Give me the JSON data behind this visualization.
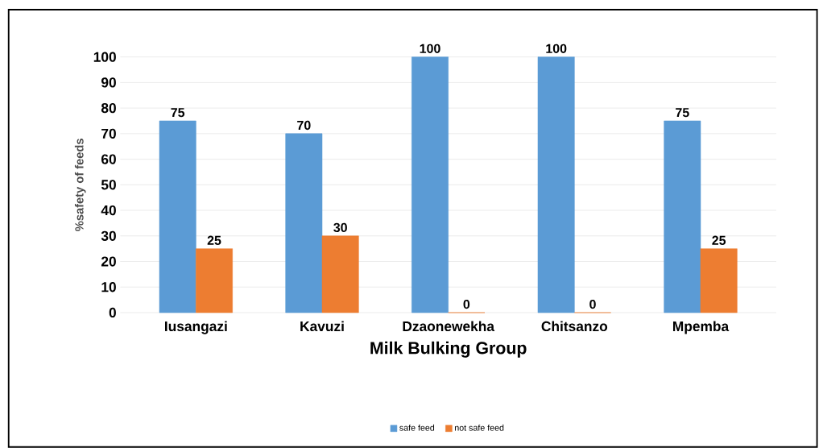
{
  "chart_data": {
    "type": "bar",
    "xlabel": "Milk Bulking Group",
    "ylabel": "%safety of feeds",
    "categories": [
      "Iusangazi",
      "Kavuzi",
      "Dzaonewekha",
      "Chitsanzo",
      "Mpemba"
    ],
    "series": [
      {
        "name": "safe feed",
        "color": "#5b9bd5",
        "values": [
          75,
          70,
          100,
          100,
          75
        ]
      },
      {
        "name": "not safe feed",
        "color": "#ed7d31",
        "values": [
          25,
          30,
          0,
          0,
          25
        ]
      }
    ],
    "ylim": [
      0,
      100
    ],
    "yticks": [
      0,
      10,
      20,
      30,
      40,
      50,
      60,
      70,
      80,
      90,
      100
    ],
    "grid": "y",
    "legend": "bottom",
    "data_labels": true
  }
}
